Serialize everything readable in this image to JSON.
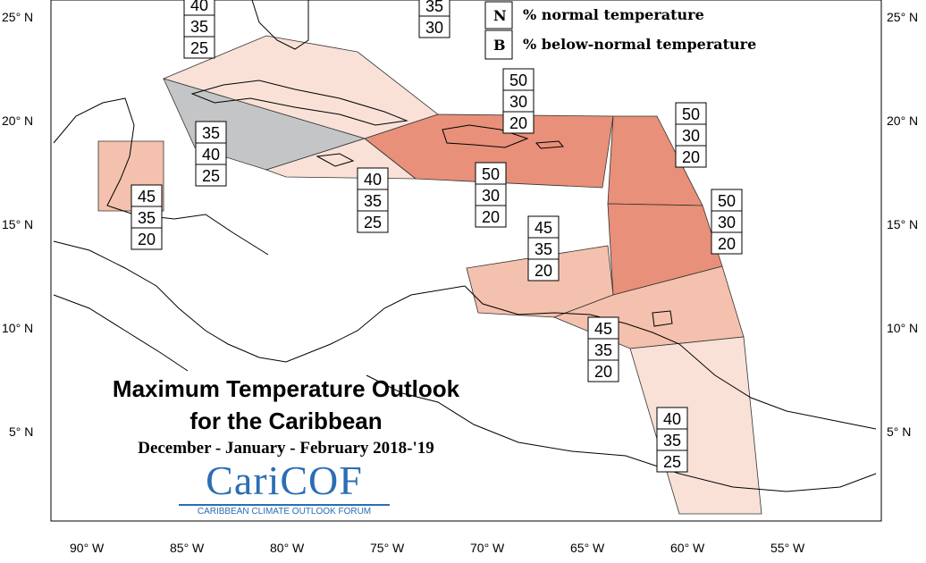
{
  "title": {
    "line1": "Maximum Temperature Outlook",
    "line2": "for the Caribbean",
    "period": "December - January - February 2018-'19"
  },
  "logo": {
    "name": "CariCOF",
    "subtitle": "CARIBBEAN CLIMATE OUTLOOK FORUM"
  },
  "legend": [
    {
      "letter": "N",
      "label": "% normal temperature"
    },
    {
      "letter": "B",
      "label": "% below-normal temperature"
    }
  ],
  "axes": {
    "lat_labels": [
      "25° N",
      "20° N",
      "15° N",
      "10° N",
      "5° N"
    ],
    "lon_labels": [
      "90° W",
      "85° W",
      "80° W",
      "75° W",
      "70° W",
      "65° W",
      "60° W",
      "55° W"
    ]
  },
  "colors": {
    "above_50": "#e8907a",
    "above_45": "#f4c1ae",
    "above_40": "#f9e1d7",
    "below_35": "#c4c5c6"
  },
  "regions": [
    {
      "name": "bahamas-north",
      "probabilities": [
        "40",
        "35",
        "25"
      ]
    },
    {
      "name": "bahamas-east",
      "probabilities": [
        "35",
        "30"
      ]
    },
    {
      "name": "greater-antilles-north",
      "probabilities": [
        "50",
        "30",
        "20"
      ]
    },
    {
      "name": "leeward-islands",
      "probabilities": [
        "50",
        "30",
        "20"
      ]
    },
    {
      "name": "cuba",
      "probabilities": [
        "35",
        "40",
        "25"
      ]
    },
    {
      "name": "belize",
      "probabilities": [
        "45",
        "35",
        "20"
      ]
    },
    {
      "name": "jamaica",
      "probabilities": [
        "40",
        "35",
        "25"
      ]
    },
    {
      "name": "greater-antilles-south",
      "probabilities": [
        "50",
        "30",
        "20"
      ]
    },
    {
      "name": "windward-islands",
      "probabilities": [
        "50",
        "30",
        "20"
      ]
    },
    {
      "name": "abc-islands",
      "probabilities": [
        "45",
        "35",
        "20"
      ]
    },
    {
      "name": "trinidad-tobago",
      "probabilities": [
        "45",
        "35",
        "20"
      ]
    },
    {
      "name": "guianas",
      "probabilities": [
        "40",
        "35",
        "25"
      ]
    }
  ]
}
